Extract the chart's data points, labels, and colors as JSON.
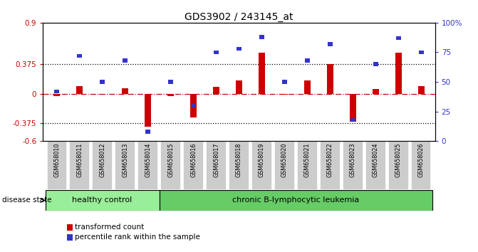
{
  "title": "GDS3902 / 243145_at",
  "samples": [
    "GSM658010",
    "GSM658011",
    "GSM658012",
    "GSM658013",
    "GSM658014",
    "GSM658015",
    "GSM658016",
    "GSM658017",
    "GSM658018",
    "GSM658019",
    "GSM658020",
    "GSM658021",
    "GSM658022",
    "GSM658023",
    "GSM658024",
    "GSM658025",
    "GSM658026"
  ],
  "transformed_count": [
    -0.03,
    0.1,
    -0.01,
    0.07,
    -0.42,
    -0.03,
    -0.3,
    0.09,
    0.17,
    0.52,
    -0.01,
    0.17,
    0.38,
    -0.35,
    0.06,
    0.52,
    0.1
  ],
  "percentile_rank": [
    42,
    72,
    50,
    68,
    8,
    50,
    30,
    75,
    78,
    88,
    50,
    68,
    82,
    18,
    65,
    87,
    75
  ],
  "healthy_count": 5,
  "disease_group": "chronic B-lymphocytic leukemia",
  "healthy_group": "healthy control",
  "ylim_left": [
    -0.6,
    0.9
  ],
  "ylim_right": [
    0,
    100
  ],
  "hline_dotted": [
    0.375,
    -0.375
  ],
  "red_color": "#CC0000",
  "blue_color": "#3333CC",
  "healthy_bg": "#99EE99",
  "leukemia_bg": "#66CC66",
  "bar_bg": "#CCCCCC",
  "dotted_line_color": "#000000",
  "zero_line_color": "#CC0000",
  "title_fontsize": 10
}
